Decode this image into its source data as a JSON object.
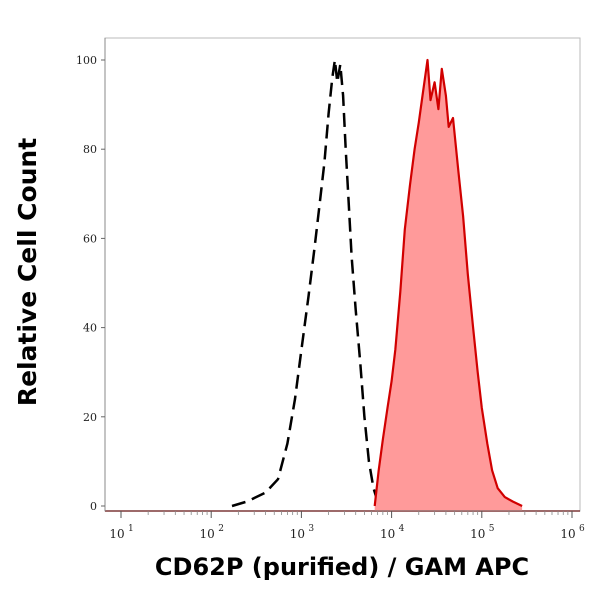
{
  "chart_data": {
    "type": "area",
    "title": "",
    "xlabel": "CD62P (purified) / GAM APC",
    "ylabel": "Relative Cell Count",
    "x_scale": "log",
    "xlim": [
      10,
      1000000
    ],
    "ylim": [
      0,
      100
    ],
    "y_ticks": [
      "0",
      "20",
      "40",
      "60",
      "80",
      "100"
    ],
    "x_ticks": [
      {
        "base": "10",
        "exp": "1"
      },
      {
        "base": "10",
        "exp": "2"
      },
      {
        "base": "10",
        "exp": "3"
      },
      {
        "base": "10",
        "exp": "4"
      },
      {
        "base": "10",
        "exp": "5"
      },
      {
        "base": "10",
        "exp": "6"
      }
    ],
    "grid": false,
    "series": [
      {
        "style": "dashed-line",
        "color": "#000000",
        "points": [
          [
            170,
            0
          ],
          [
            250,
            1
          ],
          [
            400,
            3
          ],
          [
            550,
            6
          ],
          [
            700,
            14
          ],
          [
            850,
            24
          ],
          [
            1000,
            35
          ],
          [
            1200,
            47
          ],
          [
            1400,
            58
          ],
          [
            1600,
            68
          ],
          [
            1800,
            77
          ],
          [
            2000,
            88
          ],
          [
            2200,
            96
          ],
          [
            2350,
            100
          ],
          [
            2500,
            95
          ],
          [
            2700,
            99
          ],
          [
            2900,
            92
          ],
          [
            3100,
            80
          ],
          [
            3300,
            70
          ],
          [
            3600,
            56
          ],
          [
            4000,
            44
          ],
          [
            4500,
            32
          ],
          [
            5000,
            20
          ],
          [
            5600,
            10
          ],
          [
            6300,
            4
          ],
          [
            7000,
            1
          ],
          [
            8000,
            0
          ]
        ]
      },
      {
        "style": "filled",
        "color": "#d10000",
        "fill": "#ff9a9a",
        "points": [
          [
            6500,
            0
          ],
          [
            7200,
            8
          ],
          [
            8000,
            15
          ],
          [
            9000,
            22
          ],
          [
            10000,
            28
          ],
          [
            11000,
            35
          ],
          [
            12500,
            48
          ],
          [
            14000,
            62
          ],
          [
            16000,
            72
          ],
          [
            18000,
            80
          ],
          [
            20000,
            86
          ],
          [
            22000,
            92
          ],
          [
            25000,
            100
          ],
          [
            27000,
            91
          ],
          [
            30000,
            95
          ],
          [
            33000,
            89
          ],
          [
            36000,
            98
          ],
          [
            40000,
            92
          ],
          [
            43000,
            85
          ],
          [
            48000,
            87
          ],
          [
            55000,
            75
          ],
          [
            62000,
            65
          ],
          [
            70000,
            52
          ],
          [
            80000,
            40
          ],
          [
            90000,
            30
          ],
          [
            100000,
            22
          ],
          [
            115000,
            14
          ],
          [
            130000,
            8
          ],
          [
            150000,
            4
          ],
          [
            180000,
            2
          ],
          [
            220000,
            1
          ],
          [
            280000,
            0
          ]
        ]
      }
    ]
  }
}
